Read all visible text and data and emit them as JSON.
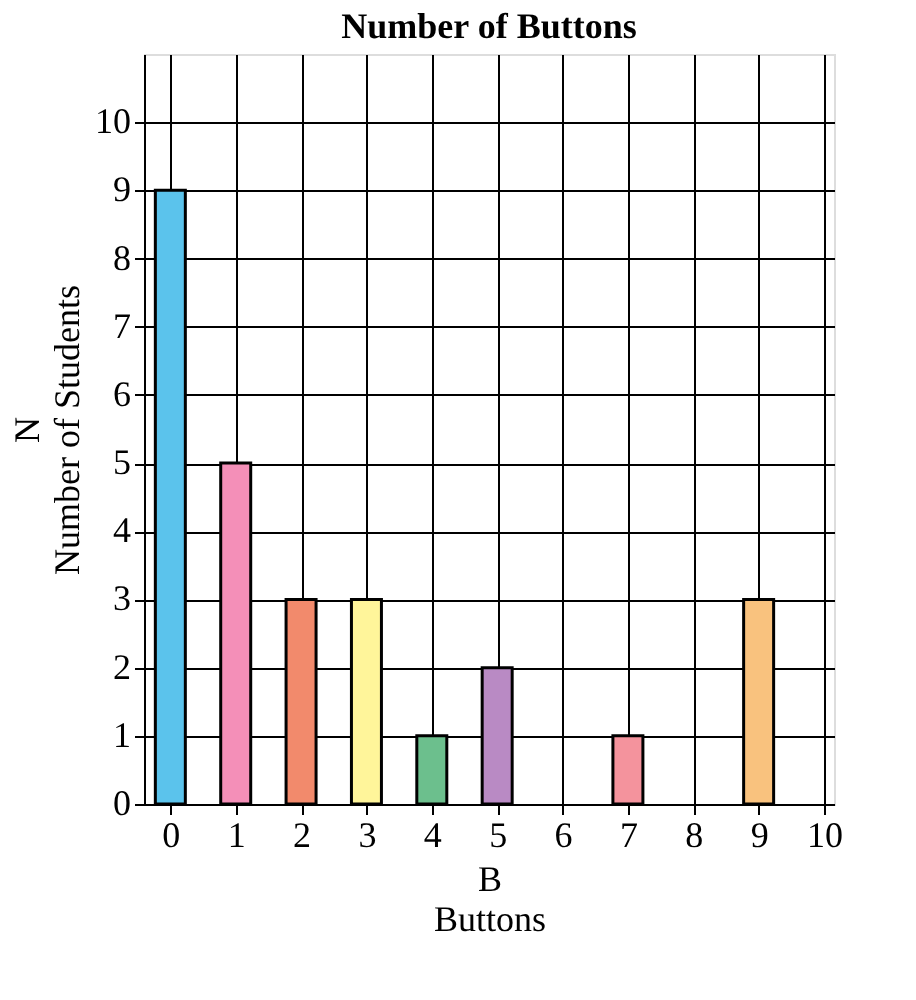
{
  "chart_data": {
    "type": "bar",
    "title": "Number of Buttons",
    "xlabel": "B\nButtons",
    "ylabel": "N\nNumber of Students",
    "x": [
      0,
      1,
      2,
      3,
      4,
      5,
      6,
      7,
      8,
      9
    ],
    "values": [
      9,
      5,
      3,
      3,
      1,
      2,
      0,
      1,
      0,
      3
    ],
    "colors": [
      "#5bc3ec",
      "#f48fb8",
      "#f28a6c",
      "#fff59a",
      "#6cbf8d",
      "#b98ac4",
      null,
      "#f4939d",
      null,
      "#f9c27e"
    ],
    "xlim": [
      -0.25,
      10
    ],
    "xticks": [
      0,
      1,
      2,
      3,
      4,
      5,
      6,
      7,
      8,
      9,
      10
    ],
    "ylim": [
      0,
      11
    ],
    "yticks": [
      0,
      1,
      2,
      3,
      4,
      5,
      6,
      7,
      8,
      9,
      10
    ],
    "grid": true
  }
}
